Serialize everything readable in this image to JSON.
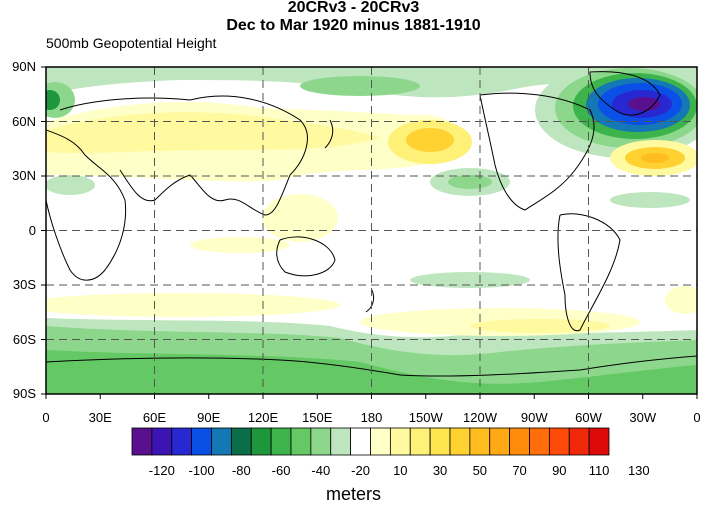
{
  "title": {
    "line1": "20CRv3 - 20CRv3",
    "line2": "Dec to Mar 1920 minus 1881-1910",
    "left": "500mb Geopotential Height"
  },
  "axes": {
    "lat_labels": [
      "90N",
      "60N",
      "30N",
      "0",
      "30S",
      "60S",
      "90S"
    ],
    "lon_labels": [
      "0",
      "30E",
      "60E",
      "90E",
      "120E",
      "150E",
      "180",
      "150W",
      "120W",
      "90W",
      "60W",
      "30W",
      "0"
    ]
  },
  "colorbar": {
    "labels": [
      "-120",
      "-100",
      "-80",
      "-60",
      "-40",
      "-20",
      "10",
      "30",
      "50",
      "70",
      "90",
      "110",
      "130"
    ],
    "colors": [
      "#5a0f8f",
      "#3c14b4",
      "#2828d2",
      "#0a50e6",
      "#1478b4",
      "#0a6e46",
      "#1e963c",
      "#3cb44b",
      "#64c864",
      "#8cd78c",
      "#bee6be",
      "#ffffff",
      "#ffffc8",
      "#fffaa0",
      "#fff078",
      "#ffe650",
      "#ffd232",
      "#ffbe1e",
      "#ffaa14",
      "#ff8c0a",
      "#ff6e0a",
      "#ff4b0a",
      "#f0280a",
      "#dc0a0a"
    ],
    "units": "meters"
  },
  "map_data": {
    "type": "contour_fill",
    "variable": "500mb Geopotential Height",
    "lat_range": [
      -90,
      90
    ],
    "lon_range": [
      0,
      360
    ],
    "grid_dashed": true,
    "features": [
      {
        "name": "north-atlantic-low",
        "lon": 330,
        "lat": 65,
        "value": -120
      },
      {
        "name": "north-pacific-high",
        "lon": 210,
        "lat": 49,
        "value": 80
      },
      {
        "name": "eurasia-positive-belt",
        "lon": 80,
        "lat": 52,
        "value": 30
      },
      {
        "name": "atlantic-subtropical-high",
        "lon": 340,
        "lat": 38,
        "value": 50
      },
      {
        "name": "antarctic-negative-ring",
        "lon": 180,
        "lat": -72,
        "value": -40
      },
      {
        "name": "southern-midlatitude-positive",
        "lon": 240,
        "lat": -52,
        "value": 30
      },
      {
        "name": "south-atlantic-positive",
        "lon": 350,
        "lat": -48,
        "value": 20
      },
      {
        "name": "northwest-pacific-negative",
        "lon": 45,
        "lat": 75,
        "value": -40
      }
    ]
  }
}
